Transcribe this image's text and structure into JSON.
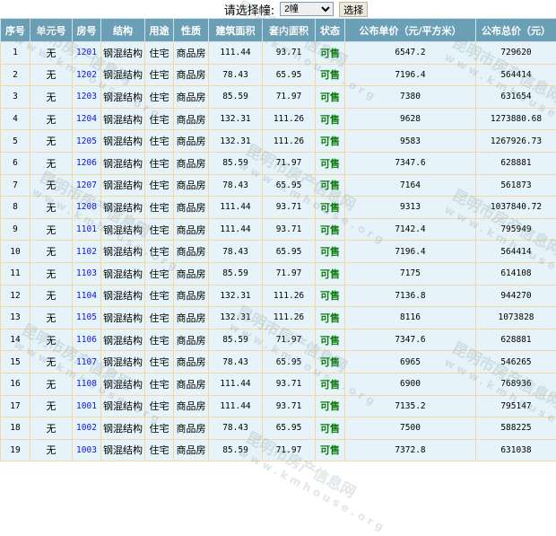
{
  "selector": {
    "label": "请选择幢:",
    "selected": "2幢",
    "submit": "选择"
  },
  "watermark": {
    "line1": "昆明市房产信息网",
    "line2": "www.kmhouse.org"
  },
  "columns": [
    "序号",
    "单元号",
    "房号",
    "结构",
    "用途",
    "性质",
    "建筑面积",
    "套内面积",
    "状态",
    "公布单价（元/平方米）",
    "公布总价（元）"
  ],
  "rows": [
    [
      "1",
      "无",
      "1201",
      "钢混结构",
      "住宅",
      "商品房",
      "111.44",
      "93.71",
      "可售",
      "6547.2",
      "729620"
    ],
    [
      "2",
      "无",
      "1202",
      "钢混结构",
      "住宅",
      "商品房",
      "78.43",
      "65.95",
      "可售",
      "7196.4",
      "564414"
    ],
    [
      "3",
      "无",
      "1203",
      "钢混结构",
      "住宅",
      "商品房",
      "85.59",
      "71.97",
      "可售",
      "7380",
      "631654"
    ],
    [
      "4",
      "无",
      "1204",
      "钢混结构",
      "住宅",
      "商品房",
      "132.31",
      "111.26",
      "可售",
      "9628",
      "1273880.68"
    ],
    [
      "5",
      "无",
      "1205",
      "钢混结构",
      "住宅",
      "商品房",
      "132.31",
      "111.26",
      "可售",
      "9583",
      "1267926.73"
    ],
    [
      "6",
      "无",
      "1206",
      "钢混结构",
      "住宅",
      "商品房",
      "85.59",
      "71.97",
      "可售",
      "7347.6",
      "628881"
    ],
    [
      "7",
      "无",
      "1207",
      "钢混结构",
      "住宅",
      "商品房",
      "78.43",
      "65.95",
      "可售",
      "7164",
      "561873"
    ],
    [
      "8",
      "无",
      "1208",
      "钢混结构",
      "住宅",
      "商品房",
      "111.44",
      "93.71",
      "可售",
      "9313",
      "1037840.72"
    ],
    [
      "9",
      "无",
      "1101",
      "钢混结构",
      "住宅",
      "商品房",
      "111.44",
      "93.71",
      "可售",
      "7142.4",
      "795949"
    ],
    [
      "10",
      "无",
      "1102",
      "钢混结构",
      "住宅",
      "商品房",
      "78.43",
      "65.95",
      "可售",
      "7196.4",
      "564414"
    ],
    [
      "11",
      "无",
      "1103",
      "钢混结构",
      "住宅",
      "商品房",
      "85.59",
      "71.97",
      "可售",
      "7175",
      "614108"
    ],
    [
      "12",
      "无",
      "1104",
      "钢混结构",
      "住宅",
      "商品房",
      "132.31",
      "111.26",
      "可售",
      "7136.8",
      "944270"
    ],
    [
      "13",
      "无",
      "1105",
      "钢混结构",
      "住宅",
      "商品房",
      "132.31",
      "111.26",
      "可售",
      "8116",
      "1073828"
    ],
    [
      "14",
      "无",
      "1106",
      "钢混结构",
      "住宅",
      "商品房",
      "85.59",
      "71.97",
      "可售",
      "7347.6",
      "628881"
    ],
    [
      "15",
      "无",
      "1107",
      "钢混结构",
      "住宅",
      "商品房",
      "78.43",
      "65.95",
      "可售",
      "6965",
      "546265"
    ],
    [
      "16",
      "无",
      "1108",
      "钢混结构",
      "住宅",
      "商品房",
      "111.44",
      "93.71",
      "可售",
      "6900",
      "768936"
    ],
    [
      "17",
      "无",
      "1001",
      "钢混结构",
      "住宅",
      "商品房",
      "111.44",
      "93.71",
      "可售",
      "7135.2",
      "795147"
    ],
    [
      "18",
      "无",
      "1002",
      "钢混结构",
      "住宅",
      "商品房",
      "78.43",
      "65.95",
      "可售",
      "7500",
      "588225"
    ],
    [
      "19",
      "无",
      "1003",
      "钢混结构",
      "住宅",
      "商品房",
      "85.59",
      "71.97",
      "可售",
      "7372.8",
      "631038"
    ]
  ]
}
